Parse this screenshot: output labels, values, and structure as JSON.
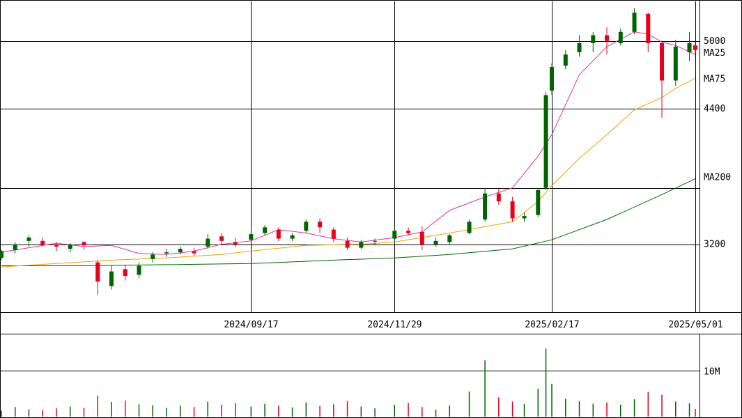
{
  "chart_data": {
    "type": "candlestick",
    "colors": {
      "up": "#006400",
      "down": "#e8001c",
      "ma25": "#e8319c",
      "ma75": "#f0a000",
      "ma200": "#006400",
      "grid": "#000000"
    },
    "x_ticks": [
      "2024/09/17",
      "2024/11/29",
      "2025/02/17",
      "2025/05/01"
    ],
    "y_ticks": [
      3200,
      4400,
      5000
    ],
    "y_range": [
      2600,
      5350
    ],
    "volume_ticks": [
      "10M"
    ],
    "volume_range_millions": [
      0,
      18
    ],
    "legend": {
      "ma25": "MA25",
      "ma75": "MA75",
      "ma200": "MA200"
    },
    "ma_label_values": {
      "ma25": 4900,
      "ma75": 4670,
      "ma200": 3800
    },
    "ma25_points": [
      [
        "2024-05-13",
        3130
      ],
      [
        "2024-05-27",
        3170
      ],
      [
        "2024-06-10",
        3210
      ],
      [
        "2024-06-24",
        3180
      ],
      [
        "2024-07-08",
        3190
      ],
      [
        "2024-07-22",
        3120
      ],
      [
        "2024-08-05",
        3110
      ],
      [
        "2024-08-19",
        3140
      ],
      [
        "2024-09-02",
        3200
      ],
      [
        "2024-09-17",
        3230
      ],
      [
        "2024-10-01",
        3330
      ],
      [
        "2024-10-15",
        3300
      ],
      [
        "2024-10-29",
        3250
      ],
      [
        "2024-11-12",
        3220
      ],
      [
        "2024-11-29",
        3260
      ],
      [
        "2024-12-13",
        3310
      ],
      [
        "2024-12-27",
        3500
      ],
      [
        "2025-01-14",
        3620
      ],
      [
        "2025-01-28",
        3700
      ],
      [
        "2025-02-10",
        3980
      ],
      [
        "2025-02-17",
        4170
      ],
      [
        "2025-03-03",
        4700
      ],
      [
        "2025-03-17",
        4950
      ],
      [
        "2025-03-31",
        5080
      ],
      [
        "2025-04-07",
        5060
      ],
      [
        "2025-04-14",
        4990
      ],
      [
        "2025-04-21",
        4960
      ],
      [
        "2025-05-01",
        4880
      ]
    ],
    "ma75_points": [
      [
        "2024-05-13",
        3000
      ],
      [
        "2024-06-10",
        3030
      ],
      [
        "2024-07-08",
        3060
      ],
      [
        "2024-08-05",
        3080
      ],
      [
        "2024-09-02",
        3110
      ],
      [
        "2024-09-17",
        3140
      ],
      [
        "2024-10-15",
        3190
      ],
      [
        "2024-11-12",
        3200
      ],
      [
        "2024-11-29",
        3220
      ],
      [
        "2024-12-27",
        3300
      ],
      [
        "2025-01-28",
        3400
      ],
      [
        "2025-02-10",
        3580
      ],
      [
        "2025-02-17",
        3720
      ],
      [
        "2025-03-03",
        3960
      ],
      [
        "2025-03-17",
        4170
      ],
      [
        "2025-03-31",
        4390
      ],
      [
        "2025-04-14",
        4500
      ],
      [
        "2025-04-21",
        4580
      ],
      [
        "2025-05-01",
        4670
      ]
    ],
    "ma200_points": [
      [
        "2024-05-13",
        3010
      ],
      [
        "2024-06-24",
        3010
      ],
      [
        "2024-08-05",
        3020
      ],
      [
        "2024-09-17",
        3030
      ],
      [
        "2024-10-29",
        3060
      ],
      [
        "2024-11-29",
        3080
      ],
      [
        "2024-12-27",
        3110
      ],
      [
        "2025-01-28",
        3160
      ],
      [
        "2025-02-17",
        3240
      ],
      [
        "2025-03-17",
        3420
      ],
      [
        "2025-04-14",
        3640
      ],
      [
        "2025-05-01",
        3780
      ]
    ],
    "candles": [
      [
        "2024-05-13",
        3080,
        3140,
        3150,
        3060,
        1.3
      ],
      [
        "2024-05-20",
        3150,
        3200,
        3220,
        3120,
        2.1
      ],
      [
        "2024-05-27",
        3230,
        3260,
        3280,
        3180,
        1.6
      ],
      [
        "2024-06-03",
        3230,
        3200,
        3260,
        3180,
        1.4
      ],
      [
        "2024-06-10",
        3200,
        3180,
        3220,
        3140,
        1.8
      ],
      [
        "2024-06-17",
        3160,
        3200,
        3210,
        3130,
        2.2
      ],
      [
        "2024-06-24",
        3220,
        3190,
        3230,
        3150,
        1.9
      ],
      [
        "2024-07-01",
        3040,
        2870,
        3060,
        2750,
        4.6
      ],
      [
        "2024-07-08",
        2830,
        2960,
        3010,
        2800,
        3.2
      ],
      [
        "2024-07-15",
        2980,
        2920,
        3020,
        2880,
        3.5
      ],
      [
        "2024-07-22",
        2930,
        3010,
        3040,
        2900,
        2.7
      ],
      [
        "2024-07-29",
        3070,
        3110,
        3130,
        3040,
        2.5
      ],
      [
        "2024-08-05",
        3120,
        3130,
        3160,
        3090,
        1.9
      ],
      [
        "2024-08-12",
        3130,
        3160,
        3180,
        3110,
        2.4
      ],
      [
        "2024-08-19",
        3140,
        3120,
        3170,
        3100,
        2.1
      ],
      [
        "2024-08-26",
        3180,
        3250,
        3290,
        3160,
        3.3
      ],
      [
        "2024-09-02",
        3270,
        3230,
        3300,
        3200,
        2.6
      ],
      [
        "2024-09-09",
        3220,
        3200,
        3260,
        3180,
        2.9
      ],
      [
        "2024-09-17",
        3240,
        3290,
        3320,
        3220,
        2.2
      ],
      [
        "2024-09-24",
        3300,
        3350,
        3370,
        3280,
        2.8
      ],
      [
        "2024-10-01",
        3330,
        3250,
        3350,
        3230,
        2.4
      ],
      [
        "2024-10-08",
        3250,
        3280,
        3300,
        3230,
        2.0
      ],
      [
        "2024-10-15",
        3320,
        3400,
        3420,
        3300,
        3.1
      ],
      [
        "2024-10-22",
        3400,
        3350,
        3430,
        3300,
        2.3
      ],
      [
        "2024-10-29",
        3330,
        3250,
        3350,
        3220,
        2.7
      ],
      [
        "2024-11-05",
        3230,
        3170,
        3260,
        3150,
        3.4
      ],
      [
        "2024-11-12",
        3170,
        3220,
        3240,
        3160,
        2.2
      ],
      [
        "2024-11-19",
        3230,
        3230,
        3250,
        3190,
        1.8
      ],
      [
        "2024-11-29",
        3250,
        3320,
        3340,
        3220,
        2.6
      ],
      [
        "2024-12-06",
        3320,
        3300,
        3350,
        3280,
        3.0
      ],
      [
        "2024-12-13",
        3310,
        3200,
        3360,
        3150,
        2.1
      ],
      [
        "2024-12-20",
        3200,
        3230,
        3260,
        3180,
        1.5
      ],
      [
        "2024-12-27",
        3220,
        3280,
        3290,
        3200,
        2.4
      ],
      [
        "2025-01-06",
        3300,
        3400,
        3420,
        3290,
        5.5
      ],
      [
        "2025-01-14",
        3420,
        3650,
        3700,
        3400,
        12.3
      ],
      [
        "2025-01-21",
        3650,
        3580,
        3690,
        3550,
        4.2
      ],
      [
        "2025-01-28",
        3580,
        3430,
        3620,
        3400,
        3.3
      ],
      [
        "2025-02-03",
        3430,
        3450,
        3480,
        3400,
        2.8
      ],
      [
        "2025-02-10",
        3460,
        3680,
        3700,
        3440,
        6.1
      ],
      [
        "2025-02-14",
        3700,
        4520,
        4550,
        3680,
        14.9
      ],
      [
        "2025-02-17",
        4560,
        4770,
        4800,
        4520,
        7.2
      ],
      [
        "2025-02-24",
        4780,
        4880,
        4920,
        4750,
        3.9
      ],
      [
        "2025-03-03",
        4900,
        4980,
        5050,
        4860,
        3.4
      ],
      [
        "2025-03-10",
        4980,
        5050,
        5080,
        4900,
        2.8
      ],
      [
        "2025-03-17",
        5050,
        5000,
        5120,
        4880,
        3.1
      ],
      [
        "2025-03-24",
        4980,
        5080,
        5110,
        4960,
        2.6
      ],
      [
        "2025-03-31",
        5080,
        5250,
        5290,
        5060,
        3.8
      ],
      [
        "2025-04-07",
        5240,
        4980,
        5250,
        4900,
        5.4
      ],
      [
        "2025-04-14",
        4980,
        4650,
        4990,
        4320,
        4.8
      ],
      [
        "2025-04-21",
        4650,
        4950,
        5010,
        4600,
        3.3
      ],
      [
        "2025-04-28",
        4900,
        4980,
        5080,
        4820,
        2.9
      ],
      [
        "2025-05-01",
        4960,
        4920,
        4990,
        4880,
        1.7
      ]
    ]
  }
}
